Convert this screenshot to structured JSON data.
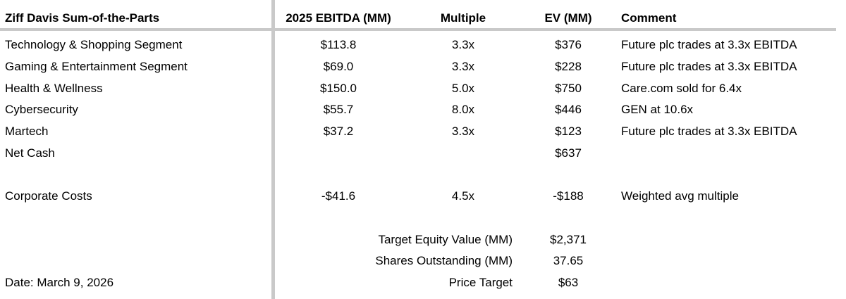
{
  "table": {
    "title": "Ziff Davis Sum-of-the-Parts",
    "columns": {
      "ebitda": "2025 EBITDA (MM)",
      "multiple": "Multiple",
      "ev": "EV (MM)",
      "comment": "Comment"
    },
    "rows": [
      {
        "label": "Technology & Shopping Segment",
        "ebitda": "$113.8",
        "multiple": "3.3x",
        "ev": "$376",
        "comment": "Future plc trades at 3.3x EBITDA"
      },
      {
        "label": "Gaming & Entertainment Segment",
        "ebitda": "$69.0",
        "multiple": "3.3x",
        "ev": "$228",
        "comment": "Future plc trades at 3.3x EBITDA"
      },
      {
        "label": "Health & Wellness",
        "ebitda": "$150.0",
        "multiple": "5.0x",
        "ev": "$750",
        "comment": "Care.com sold for 6.4x"
      },
      {
        "label": "Cybersecurity",
        "ebitda": "$55.7",
        "multiple": "8.0x",
        "ev": "$446",
        "comment": "GEN at 10.6x"
      },
      {
        "label": "Martech",
        "ebitda": "$37.2",
        "multiple": "3.3x",
        "ev": "$123",
        "comment": "Future plc trades at 3.3x EBITDA"
      },
      {
        "label": "Net Cash",
        "ebitda": "",
        "multiple": "",
        "ev": "$637",
        "comment": ""
      },
      {
        "label": "Corporate Costs",
        "ebitda": "-$41.6",
        "multiple": "4.5x",
        "ev": "-$188",
        "comment": "Weighted avg multiple"
      }
    ],
    "summary": [
      {
        "label": "Target Equity Value (MM)",
        "value": "$2,371"
      },
      {
        "label": "Shares Outstanding (MM)",
        "value": "37.65"
      },
      {
        "label": "Price Target",
        "value": "$63"
      }
    ],
    "footer": {
      "date": "Date: March 9, 2026"
    }
  },
  "colors": {
    "divider": "#c9c9c9",
    "text": "#000000",
    "background": "#ffffff"
  }
}
